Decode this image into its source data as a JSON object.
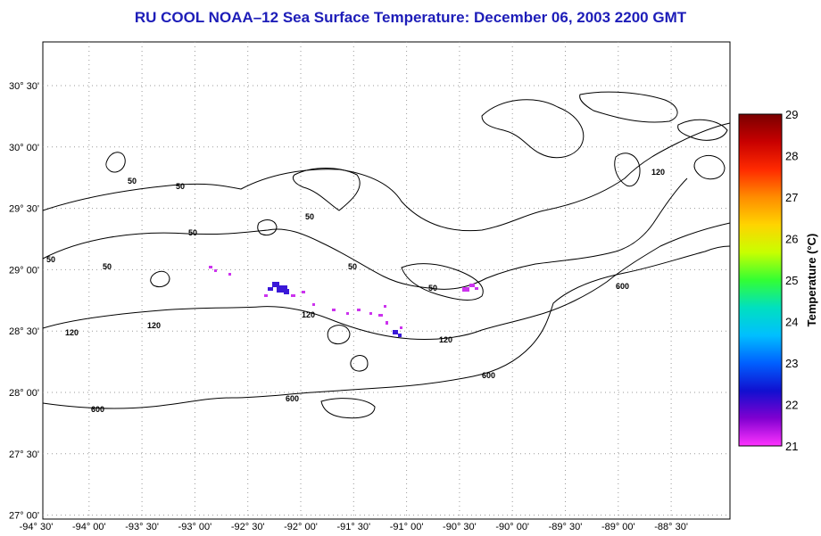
{
  "title": "RU COOL  NOAA–12  Sea Surface Temperature:  December 06, 2003 2200 GMT",
  "colorbar": {
    "label": "Temperature (°C)",
    "ticks": [
      "29",
      "28",
      "27",
      "26",
      "25",
      "24",
      "23",
      "22",
      "21"
    ],
    "colors": [
      "#7a0000",
      "#c80000",
      "#ff2a00",
      "#ff8c00",
      "#ffd400",
      "#c8ff00",
      "#33ff33",
      "#00e0c0",
      "#00bfff",
      "#0060ff",
      "#1010d0",
      "#8000d0",
      "#ff33ff"
    ]
  },
  "axes": {
    "x_ticks": [
      "-94° 30'",
      "-94° 00'",
      "-93° 30'",
      "-93° 00'",
      "-92° 30'",
      "-92° 00'",
      "-91° 30'",
      "-91° 00'",
      "-90° 30'",
      "-90° 00'",
      "-89° 30'",
      "-89° 00'",
      "-88° 30'"
    ],
    "y_ticks": [
      "30° 30'",
      "30° 00'",
      "29° 30'",
      "29° 00'",
      "28° 30'",
      "28° 00'",
      "27° 30'",
      "27° 00'"
    ]
  },
  "contour_labels": [
    "50",
    "50",
    "50",
    "50",
    "50",
    "50",
    "50",
    "50",
    "120",
    "120",
    "120",
    "120",
    "120",
    "600",
    "600",
    "600",
    "600"
  ]
}
